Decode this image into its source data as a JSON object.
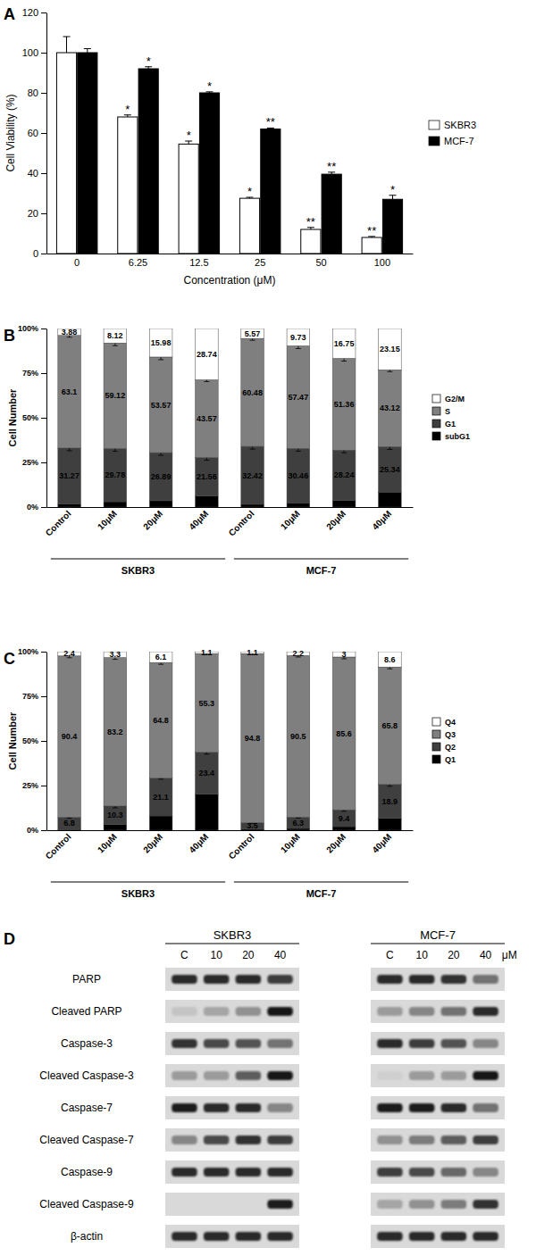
{
  "panel_labels": [
    "A",
    "B",
    "C",
    "D"
  ],
  "chart_data": [
    {
      "type": "bar",
      "x_label": "Concentration (μM)",
      "y_label": "Cell Viability (%)",
      "categories": [
        "0",
        "6.25",
        "12.5",
        "25",
        "50",
        "100"
      ],
      "series": [
        {
          "name": "SKBR3",
          "color": "#ffffff",
          "values": [
            100,
            68,
            54.5,
            27.5,
            12,
            8
          ],
          "errors": [
            8,
            1,
            1.5,
            0.5,
            1,
            0.5
          ],
          "annotations": [
            null,
            "*",
            "*",
            "*",
            "**",
            "**"
          ]
        },
        {
          "name": "MCF-7",
          "color": "#000000",
          "values": [
            100,
            92,
            80,
            62,
            39.5,
            27
          ],
          "errors": [
            2,
            1,
            0.5,
            0.5,
            1,
            2
          ],
          "annotations": [
            null,
            "*",
            "*",
            "**",
            "**",
            "*"
          ]
        }
      ],
      "ylim": [
        0,
        120
      ],
      "yticks": [
        0,
        20,
        40,
        60,
        80,
        100,
        120
      ],
      "legend": "right"
    },
    {
      "type": "bar",
      "stacked": true,
      "data_labels": true,
      "legend": "right",
      "y_label": "Cell Number",
      "categories": [
        "Control",
        "10μM",
        "20μM",
        "40μM",
        "Control",
        "10μM",
        "20μM",
        "40μM"
      ],
      "groups": [
        "SKBR3",
        "MCF-7"
      ],
      "series": [
        {
          "name": "subG1",
          "color": "#000000",
          "values": [
            1.75,
            2.98,
            3.56,
            6.13,
            1.53,
            2.34,
            3.65,
            8.39
          ],
          "value_labels": [
            null,
            null,
            null,
            null,
            null,
            null,
            null,
            null
          ]
        },
        {
          "name": "G1",
          "color": "#3f3f3f",
          "values": [
            31.27,
            29.78,
            26.89,
            21.56,
            32.42,
            30.46,
            28.24,
            25.34
          ],
          "errors": [
            1.5,
            1.5,
            1.5,
            1.5,
            1.5,
            1.5,
            1.5,
            1.5
          ]
        },
        {
          "name": "S",
          "color": "#7f7f7f",
          "values": [
            63.1,
            59.12,
            53.57,
            43.57,
            60.48,
            57.47,
            51.36,
            43.12
          ],
          "errors": [
            1,
            1.5,
            1.5,
            1,
            1,
            1.5,
            1.5,
            1
          ]
        },
        {
          "name": "G2/M",
          "color": "#ffffff",
          "values": [
            3.88,
            8.12,
            15.98,
            28.74,
            5.57,
            9.73,
            16.75,
            23.15
          ]
        }
      ],
      "ylim": [
        0,
        100
      ],
      "yticks": [
        {
          "value": 0,
          "label": "0%"
        },
        {
          "value": 25,
          "label": "25%"
        },
        {
          "value": 50,
          "label": "50%"
        },
        {
          "value": 75,
          "label": "75%"
        },
        {
          "value": 100,
          "label": "100%"
        }
      ]
    },
    {
      "type": "bar",
      "stacked": true,
      "data_labels": true,
      "legend": "right",
      "y_label": "Cell Number",
      "categories": [
        "Control",
        "10μM",
        "20μM",
        "40μM",
        "Control",
        "10μM",
        "20μM",
        "40μM"
      ],
      "groups": [
        "SKBR3",
        "MCF-7"
      ],
      "series": [
        {
          "name": "Q1",
          "color": "#000000",
          "values": [
            0.4,
            3.2,
            8.0,
            20.2,
            0.6,
            1.0,
            2.0,
            6.7
          ],
          "value_labels": [
            null,
            null,
            null,
            null,
            null,
            null,
            null,
            null
          ]
        },
        {
          "name": "Q2",
          "color": "#3f3f3f",
          "values": [
            6.8,
            10.3,
            21.1,
            23.4,
            3.5,
            6.3,
            9.4,
            18.9
          ],
          "errors": [
            0.5,
            1,
            0.5,
            1,
            0.3,
            0.5,
            0.8,
            1
          ]
        },
        {
          "name": "Q3",
          "color": "#7f7f7f",
          "values": [
            90.4,
            83.2,
            64.8,
            55.3,
            94.8,
            90.5,
            85.6,
            65.8
          ],
          "errors": [
            1,
            1,
            1,
            0.5,
            0.5,
            0.8,
            1,
            1
          ]
        },
        {
          "name": "Q4",
          "color": "#ffffff",
          "values": [
            2.4,
            3.3,
            6.1,
            1.1,
            1.1,
            2.2,
            3,
            8.6
          ]
        }
      ],
      "ylim": [
        0,
        100
      ],
      "yticks": [
        {
          "value": 0,
          "label": "0%"
        },
        {
          "value": 25,
          "label": "25%"
        },
        {
          "value": 50,
          "label": "50%"
        },
        {
          "value": 75,
          "label": "75%"
        },
        {
          "value": 100,
          "label": "100%"
        }
      ]
    }
  ],
  "blot": {
    "row_labels": [
      "PARP",
      "Cleaved  PARP",
      "Caspase-3",
      "Cleaved Caspase-3",
      "Caspase-7",
      "Cleaved Caspase-7",
      "Caspase-9",
      "Cleaved Caspase-9",
      "β-actin"
    ],
    "intensity_lim": [
      0,
      1
    ],
    "panels": [
      {
        "title": "SKBR3",
        "lanes": [
          "C",
          "10",
          "20",
          "40"
        ],
        "intensity": [
          [
            0.85,
            0.85,
            0.85,
            0.75
          ],
          [
            0.1,
            0.25,
            0.35,
            0.95
          ],
          [
            0.8,
            0.7,
            0.65,
            0.5
          ],
          [
            0.3,
            0.3,
            0.6,
            0.95
          ],
          [
            0.9,
            0.85,
            0.85,
            0.4
          ],
          [
            0.4,
            0.7,
            0.8,
            0.75
          ],
          [
            0.85,
            0.85,
            0.85,
            0.85
          ],
          [
            0,
            0,
            0,
            0.9
          ],
          [
            0.85,
            0.85,
            0.85,
            0.85
          ]
        ]
      },
      {
        "title": "MCF-7",
        "lanes": [
          "C",
          "10",
          "20",
          "40"
        ],
        "unit": "μM",
        "intensity": [
          [
            0.85,
            0.85,
            0.8,
            0.5
          ],
          [
            0.3,
            0.4,
            0.5,
            0.85
          ],
          [
            0.85,
            0.75,
            0.65,
            0.4
          ],
          [
            0.05,
            0.3,
            0.3,
            0.95
          ],
          [
            0.9,
            0.9,
            0.85,
            0.5
          ],
          [
            0.35,
            0.45,
            0.6,
            0.75
          ],
          [
            0.75,
            0.7,
            0.55,
            0.4
          ],
          [
            0.25,
            0.35,
            0.45,
            0.8
          ],
          [
            0.85,
            0.85,
            0.85,
            0.85
          ]
        ]
      }
    ]
  }
}
